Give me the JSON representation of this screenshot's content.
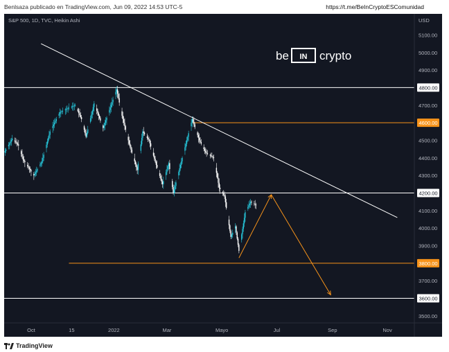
{
  "header": {
    "publisher": "Benlsaza publicado en TradingView.com, Jun 09, 2022 14:53 UTC-5",
    "link": "https://t.me/BeInCryptoESComunidad"
  },
  "chart_header": {
    "symbol": "S&P 500, 1D, TVC, Heikin Ashi",
    "currency": "USD"
  },
  "watermark": {
    "left": "be",
    "badge": "IN",
    "right": "crypto"
  },
  "footer": {
    "brand": "TradingView"
  },
  "colors": {
    "background": "#131722",
    "candle_up": "#26c6da",
    "candle_down": "#ffffff",
    "orange": "#f7931a",
    "trendline": "#ffffff",
    "axis_text": "#b2b5be"
  },
  "chart_data": {
    "type": "candlestick",
    "candle_style": "Heikin Ashi",
    "ylim": [
      3460,
      5220
    ],
    "y_ticks": [
      3500,
      3600,
      3700,
      3800,
      3900,
      4000,
      4100,
      4200,
      4300,
      4400,
      4500,
      4600,
      4700,
      4800,
      4900,
      5000,
      5100
    ],
    "y_tick_labels": [
      "3500.00",
      "3600.00",
      "3700.00",
      "3800.00",
      "3900.00",
      "4000.00",
      "4100.00",
      "4200.00",
      "4300.00",
      "4400.00",
      "4500.00",
      "4600.00",
      "4700.00",
      "4800.00",
      "4900.00",
      "5000.00",
      "5100.00"
    ],
    "x_range": [
      "2021-09-01",
      "2022-12-01"
    ],
    "x_ticks": [
      {
        "date": "2021-10-01",
        "label": "Oct"
      },
      {
        "date": "2021-11-15",
        "label": "15"
      },
      {
        "date": "2022-01-01",
        "label": "2022"
      },
      {
        "date": "2022-03-01",
        "label": "Mar"
      },
      {
        "date": "2022-05-01",
        "label": "Mayo"
      },
      {
        "date": "2022-07-01",
        "label": "Jul"
      },
      {
        "date": "2022-09-01",
        "label": "Sep"
      },
      {
        "date": "2022-11-01",
        "label": "Nov"
      }
    ],
    "price_path": [
      [
        "2021-09-01",
        4430
      ],
      [
        "2021-09-10",
        4510
      ],
      [
        "2021-09-17",
        4470
      ],
      [
        "2021-09-22",
        4390
      ],
      [
        "2021-10-04",
        4300
      ],
      [
        "2021-10-13",
        4380
      ],
      [
        "2021-10-22",
        4550
      ],
      [
        "2021-11-02",
        4660
      ],
      [
        "2021-11-10",
        4680
      ],
      [
        "2021-11-19",
        4700
      ],
      [
        "2021-11-26",
        4620
      ],
      [
        "2021-12-01",
        4520
      ],
      [
        "2021-12-10",
        4710
      ],
      [
        "2021-12-20",
        4570
      ],
      [
        "2022-01-04",
        4790
      ],
      [
        "2022-01-10",
        4640
      ],
      [
        "2022-01-18",
        4480
      ],
      [
        "2022-01-27",
        4330
      ],
      [
        "2022-02-02",
        4550
      ],
      [
        "2022-02-09",
        4500
      ],
      [
        "2022-02-17",
        4360
      ],
      [
        "2022-02-24",
        4250
      ],
      [
        "2022-03-03",
        4370
      ],
      [
        "2022-03-08",
        4200
      ],
      [
        "2022-03-16",
        4360
      ],
      [
        "2022-03-29",
        4620
      ],
      [
        "2022-04-06",
        4500
      ],
      [
        "2022-04-13",
        4430
      ],
      [
        "2022-04-22",
        4400
      ],
      [
        "2022-04-28",
        4230
      ],
      [
        "2022-05-04",
        4180
      ],
      [
        "2022-05-11",
        3950
      ],
      [
        "2022-05-16",
        4010
      ],
      [
        "2022-05-20",
        3870
      ],
      [
        "2022-05-27",
        4090
      ],
      [
        "2022-06-02",
        4150
      ],
      [
        "2022-06-08",
        4130
      ]
    ],
    "horizontal_lines": [
      {
        "price": 4800,
        "label": "4800.00",
        "color": "#ffffff",
        "start": "2021-09-01"
      },
      {
        "price": 4600,
        "label": "4600.00",
        "color": "#f7931a",
        "start": "2022-03-29"
      },
      {
        "price": 4200,
        "label": "4200.00",
        "color": "#ffffff",
        "start": "2021-09-01"
      },
      {
        "price": 3800,
        "label": "3800.00",
        "color": "#f7931a",
        "start": "2021-11-12"
      },
      {
        "price": 3600,
        "label": "3600.00",
        "color": "#ffffff",
        "start": "2021-09-01"
      }
    ],
    "trendline": {
      "points": [
        [
          "2021-10-12",
          5050
        ],
        [
          "2022-11-12",
          4060
        ]
      ],
      "color": "#ffffff"
    },
    "projection_arrows": [
      {
        "from": [
          "2022-05-20",
          3830
        ],
        "to": [
          "2022-06-25",
          4190
        ],
        "color": "#f7931a"
      },
      {
        "from": [
          "2022-06-25",
          4190
        ],
        "to": [
          "2022-08-30",
          3620
        ],
        "color": "#f7931a"
      }
    ]
  }
}
